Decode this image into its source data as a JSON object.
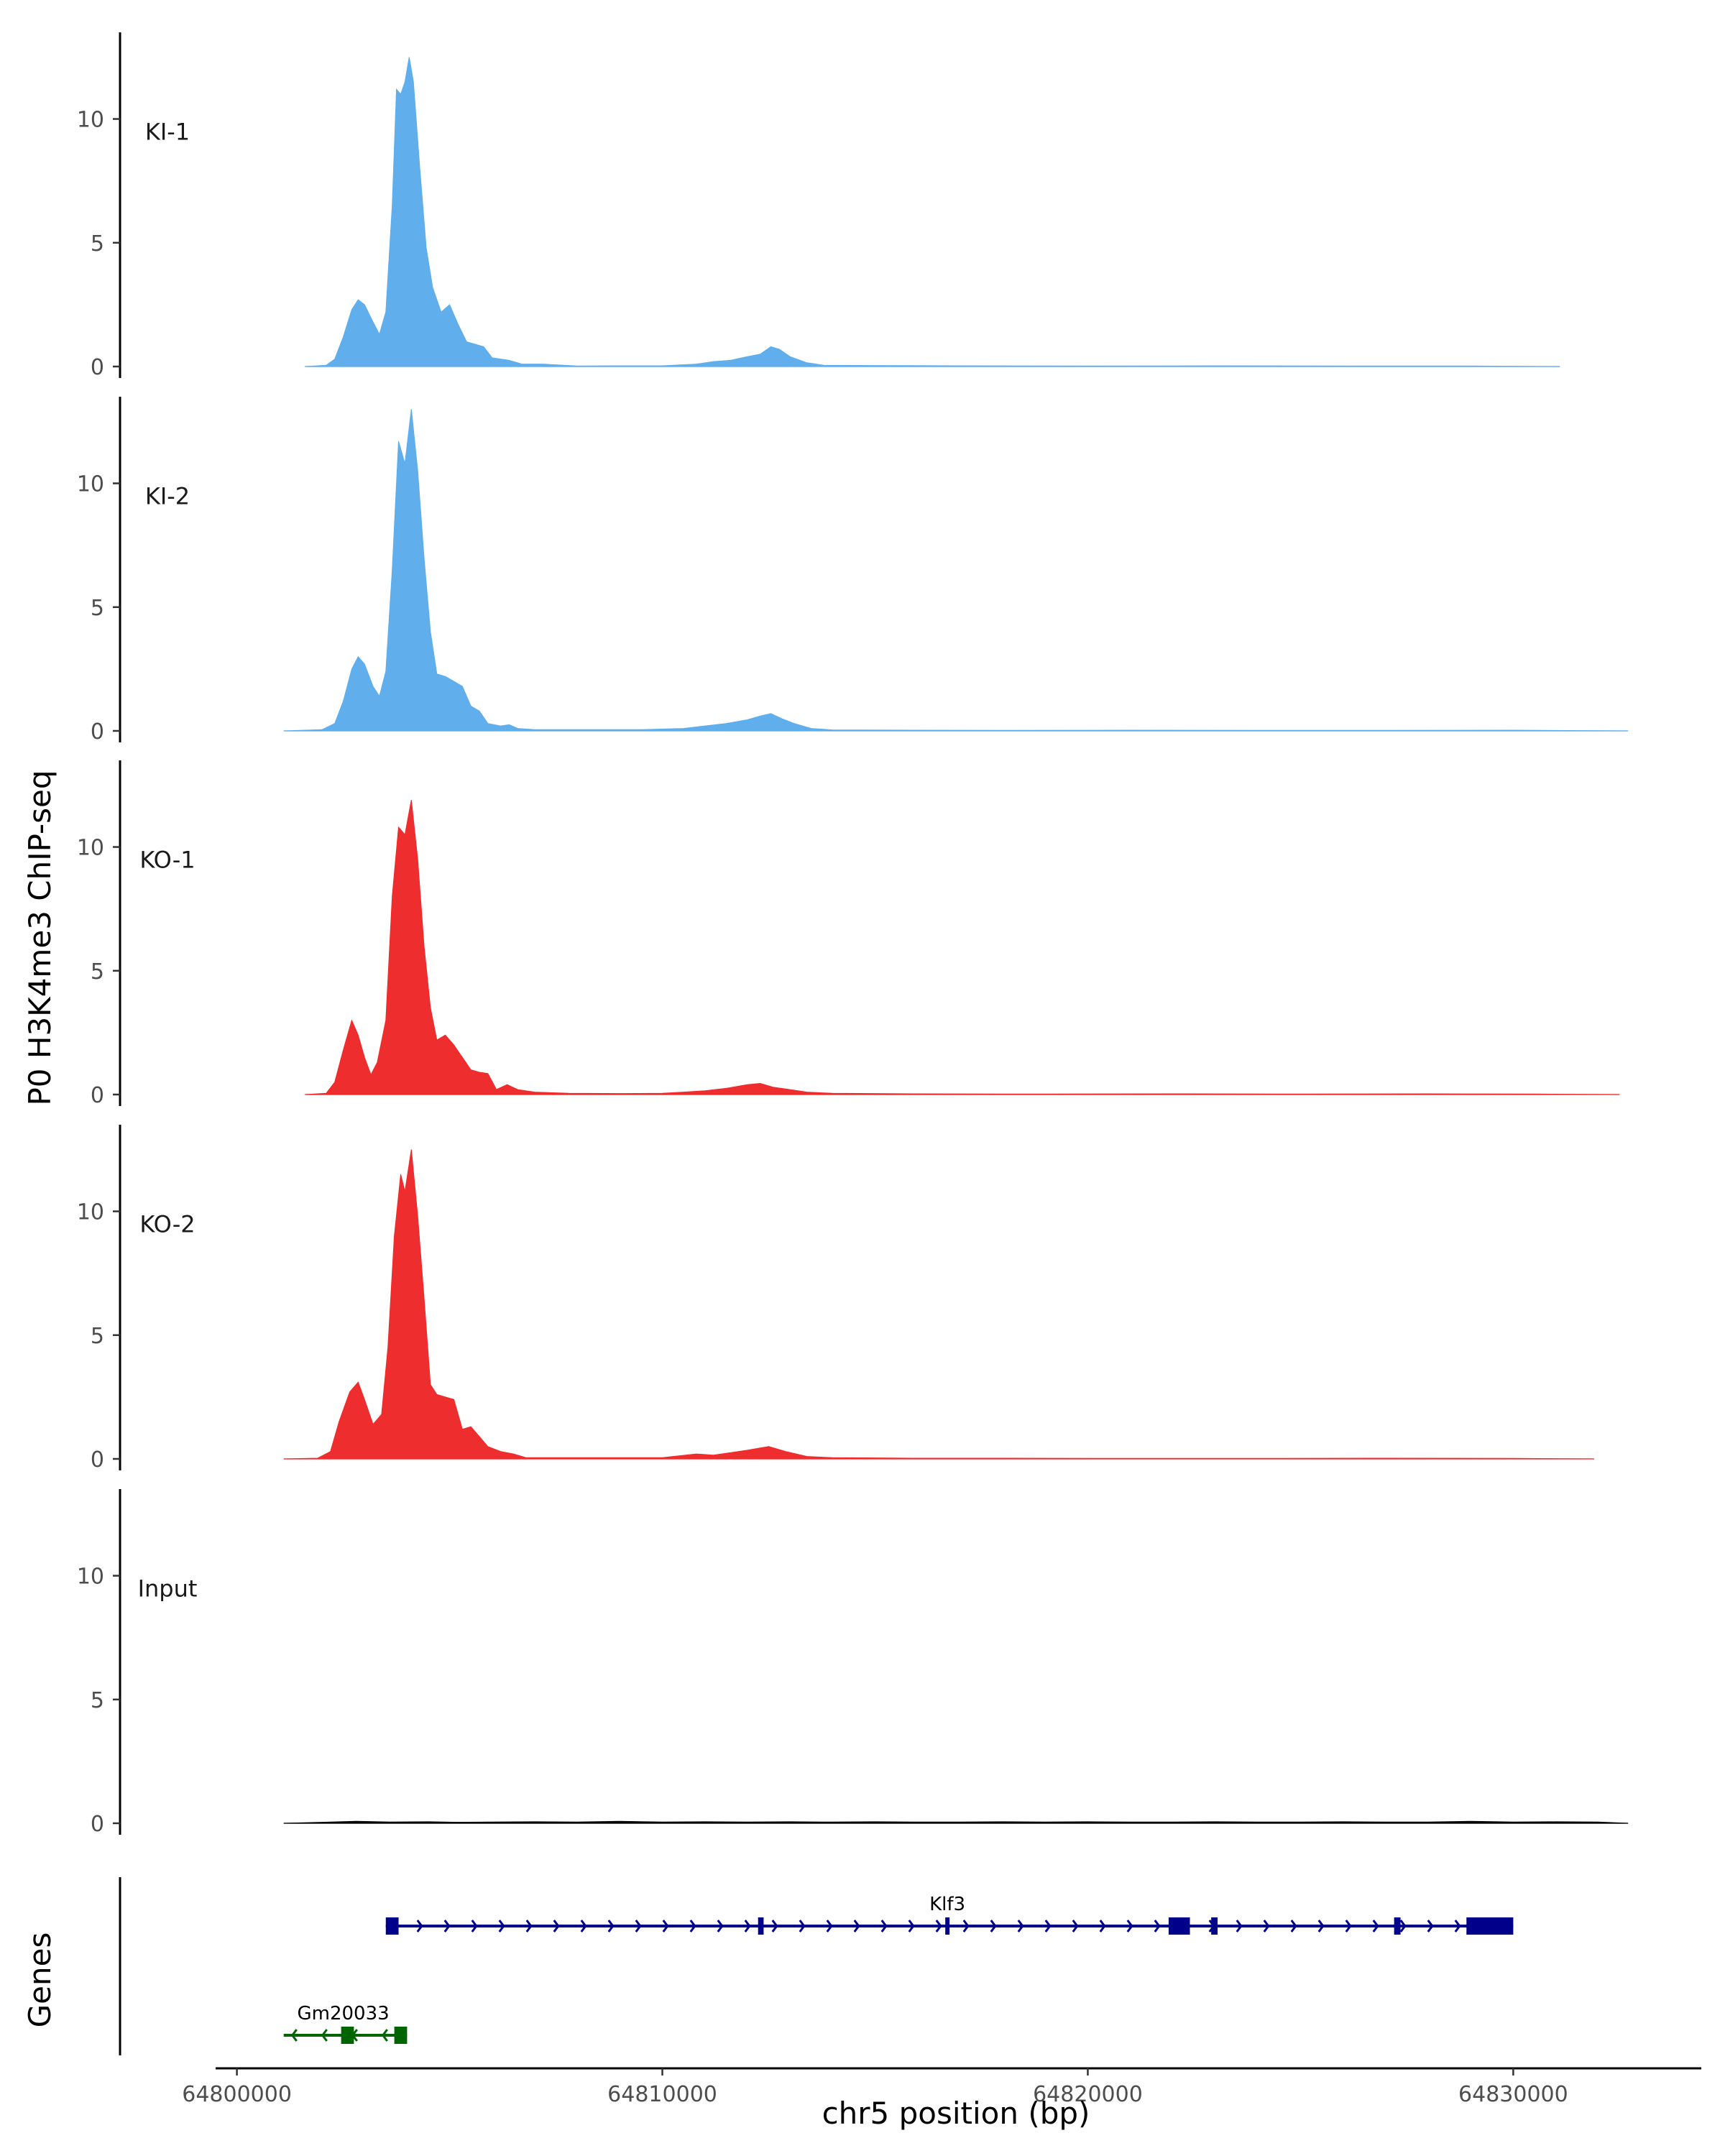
{
  "chart_data": {
    "type": "area",
    "title": "",
    "ylabel": "P0 H3K4me3 ChIP-seq",
    "xlabel": "chr5 position (bp)",
    "genes_label": "Genes",
    "ylim": [
      0,
      13.5
    ],
    "yticks": [
      0,
      5,
      10
    ],
    "xlim": [
      64799500,
      64834200
    ],
    "xticks": [
      64800000,
      64810000,
      64820000,
      64830000
    ],
    "xtick_labels": [
      "64800000",
      "64810000",
      "64820000",
      "64830000"
    ],
    "colors": {
      "KI": "#5DADEC",
      "KO": "#EE2A2A",
      "Input": "#000000",
      "Klf3": "#00008B",
      "Gm20033": "#006400"
    },
    "tracks": [
      {
        "name": "KI-1",
        "color": "#5DADEC",
        "range": [
          64801600,
          64831100
        ],
        "points": [
          [
            64801600,
            0
          ],
          [
            64802100,
            0.05
          ],
          [
            64802300,
            0.3
          ],
          [
            64802500,
            1.2
          ],
          [
            64802700,
            2.3
          ],
          [
            64802850,
            2.7
          ],
          [
            64803000,
            2.5
          ],
          [
            64803200,
            1.8
          ],
          [
            64803350,
            1.3
          ],
          [
            64803500,
            2.2
          ],
          [
            64803650,
            6.5
          ],
          [
            64803750,
            11.2
          ],
          [
            64803850,
            11.0
          ],
          [
            64803950,
            11.5
          ],
          [
            64804050,
            12.5
          ],
          [
            64804150,
            11.5
          ],
          [
            64804300,
            8.0
          ],
          [
            64804450,
            4.8
          ],
          [
            64804600,
            3.2
          ],
          [
            64804800,
            2.2
          ],
          [
            64805000,
            2.5
          ],
          [
            64805200,
            1.7
          ],
          [
            64805400,
            1.0
          ],
          [
            64805600,
            0.9
          ],
          [
            64805800,
            0.8
          ],
          [
            64806000,
            0.35
          ],
          [
            64806400,
            0.25
          ],
          [
            64806700,
            0.1
          ],
          [
            64807200,
            0.1
          ],
          [
            64808000,
            0.02
          ],
          [
            64809000,
            0.03
          ],
          [
            64810000,
            0.03
          ],
          [
            64810800,
            0.1
          ],
          [
            64811200,
            0.2
          ],
          [
            64811600,
            0.25
          ],
          [
            64812000,
            0.4
          ],
          [
            64812300,
            0.5
          ],
          [
            64812550,
            0.8
          ],
          [
            64812750,
            0.7
          ],
          [
            64813000,
            0.4
          ],
          [
            64813400,
            0.15
          ],
          [
            64813800,
            0.05
          ],
          [
            64815000,
            0.04
          ],
          [
            64817000,
            0.03
          ],
          [
            64820000,
            0.02
          ],
          [
            64823000,
            0.03
          ],
          [
            64826000,
            0.02
          ],
          [
            64829000,
            0.02
          ],
          [
            64831100,
            0
          ]
        ]
      },
      {
        "name": "KI-2",
        "color": "#5DADEC",
        "range": [
          64801100,
          64832700
        ],
        "points": [
          [
            64801100,
            0
          ],
          [
            64802000,
            0.05
          ],
          [
            64802300,
            0.3
          ],
          [
            64802500,
            1.2
          ],
          [
            64802700,
            2.5
          ],
          [
            64802850,
            3.0
          ],
          [
            64803000,
            2.7
          ],
          [
            64803200,
            1.8
          ],
          [
            64803350,
            1.4
          ],
          [
            64803500,
            2.4
          ],
          [
            64803650,
            6.5
          ],
          [
            64803800,
            11.7
          ],
          [
            64803950,
            10.8
          ],
          [
            64804100,
            13.0
          ],
          [
            64804250,
            10.5
          ],
          [
            64804400,
            7.0
          ],
          [
            64804550,
            4.0
          ],
          [
            64804700,
            2.3
          ],
          [
            64804900,
            2.2
          ],
          [
            64805100,
            2.0
          ],
          [
            64805300,
            1.8
          ],
          [
            64805500,
            1.0
          ],
          [
            64805700,
            0.8
          ],
          [
            64805900,
            0.3
          ],
          [
            64806200,
            0.2
          ],
          [
            64806400,
            0.25
          ],
          [
            64806600,
            0.1
          ],
          [
            64807000,
            0.05
          ],
          [
            64808500,
            0.05
          ],
          [
            64809500,
            0.05
          ],
          [
            64810500,
            0.1
          ],
          [
            64811000,
            0.2
          ],
          [
            64811500,
            0.3
          ],
          [
            64812000,
            0.45
          ],
          [
            64812300,
            0.6
          ],
          [
            64812550,
            0.7
          ],
          [
            64812800,
            0.5
          ],
          [
            64813100,
            0.3
          ],
          [
            64813500,
            0.1
          ],
          [
            64814000,
            0.04
          ],
          [
            64816000,
            0.03
          ],
          [
            64818000,
            0.02
          ],
          [
            64821000,
            0.03
          ],
          [
            64824000,
            0.02
          ],
          [
            64827000,
            0.02
          ],
          [
            64830000,
            0.03
          ],
          [
            64832700,
            0
          ]
        ]
      },
      {
        "name": "KO-1",
        "color": "#EE2A2A",
        "range": [
          64801600,
          64832500
        ],
        "points": [
          [
            64801600,
            0
          ],
          [
            64802100,
            0.05
          ],
          [
            64802300,
            0.5
          ],
          [
            64802500,
            1.8
          ],
          [
            64802700,
            3.0
          ],
          [
            64802850,
            2.4
          ],
          [
            64803000,
            1.5
          ],
          [
            64803150,
            0.8
          ],
          [
            64803300,
            1.3
          ],
          [
            64803500,
            3.0
          ],
          [
            64803650,
            8.0
          ],
          [
            64803800,
            10.8
          ],
          [
            64803950,
            10.5
          ],
          [
            64804100,
            11.9
          ],
          [
            64804250,
            9.5
          ],
          [
            64804400,
            6.0
          ],
          [
            64804550,
            3.5
          ],
          [
            64804700,
            2.2
          ],
          [
            64804900,
            2.4
          ],
          [
            64805100,
            2.0
          ],
          [
            64805300,
            1.5
          ],
          [
            64805500,
            1.0
          ],
          [
            64805700,
            0.9
          ],
          [
            64805900,
            0.85
          ],
          [
            64806100,
            0.2
          ],
          [
            64806350,
            0.4
          ],
          [
            64806600,
            0.2
          ],
          [
            64807000,
            0.1
          ],
          [
            64807800,
            0.05
          ],
          [
            64809000,
            0.04
          ],
          [
            64810000,
            0.05
          ],
          [
            64810500,
            0.1
          ],
          [
            64811000,
            0.15
          ],
          [
            64811500,
            0.25
          ],
          [
            64812000,
            0.4
          ],
          [
            64812300,
            0.45
          ],
          [
            64812600,
            0.3
          ],
          [
            64813000,
            0.2
          ],
          [
            64813400,
            0.1
          ],
          [
            64814000,
            0.05
          ],
          [
            64816000,
            0.03
          ],
          [
            64819000,
            0.02
          ],
          [
            64822000,
            0.03
          ],
          [
            64825000,
            0.02
          ],
          [
            64828000,
            0.03
          ],
          [
            64830500,
            0.02
          ],
          [
            64832500,
            0
          ]
        ]
      },
      {
        "name": "KO-2",
        "color": "#EE2A2A",
        "range": [
          64801100,
          64831900
        ],
        "points": [
          [
            64801100,
            0
          ],
          [
            64801900,
            0.03
          ],
          [
            64802200,
            0.3
          ],
          [
            64802400,
            1.5
          ],
          [
            64802650,
            2.7
          ],
          [
            64802850,
            3.1
          ],
          [
            64803000,
            2.4
          ],
          [
            64803200,
            1.4
          ],
          [
            64803400,
            1.8
          ],
          [
            64803550,
            4.5
          ],
          [
            64803700,
            9.0
          ],
          [
            64803850,
            11.5
          ],
          [
            64803950,
            10.8
          ],
          [
            64804100,
            12.5
          ],
          [
            64804250,
            9.8
          ],
          [
            64804400,
            6.5
          ],
          [
            64804550,
            3.0
          ],
          [
            64804700,
            2.6
          ],
          [
            64804900,
            2.5
          ],
          [
            64805100,
            2.4
          ],
          [
            64805300,
            1.2
          ],
          [
            64805500,
            1.3
          ],
          [
            64805700,
            0.9
          ],
          [
            64805900,
            0.5
          ],
          [
            64806200,
            0.3
          ],
          [
            64806500,
            0.2
          ],
          [
            64806800,
            0.05
          ],
          [
            64807500,
            0.05
          ],
          [
            64808500,
            0.05
          ],
          [
            64810000,
            0.05
          ],
          [
            64810800,
            0.2
          ],
          [
            64811200,
            0.15
          ],
          [
            64811600,
            0.25
          ],
          [
            64812000,
            0.35
          ],
          [
            64812500,
            0.5
          ],
          [
            64812900,
            0.3
          ],
          [
            64813400,
            0.1
          ],
          [
            64814000,
            0.05
          ],
          [
            64816000,
            0.03
          ],
          [
            64818000,
            0.03
          ],
          [
            64821000,
            0.02
          ],
          [
            64824000,
            0.02
          ],
          [
            64827000,
            0.03
          ],
          [
            64830000,
            0.02
          ],
          [
            64831900,
            0
          ]
        ]
      },
      {
        "name": "Input",
        "color": "#000000",
        "range": [
          64801100,
          64832700
        ],
        "points": [
          [
            64801100,
            0
          ],
          [
            64802000,
            0.04
          ],
          [
            64802800,
            0.08
          ],
          [
            64803600,
            0.05
          ],
          [
            64804500,
            0.06
          ],
          [
            64805200,
            0.04
          ],
          [
            64806000,
            0.05
          ],
          [
            64807000,
            0.06
          ],
          [
            64808000,
            0.05
          ],
          [
            64809000,
            0.08
          ],
          [
            64810000,
            0.05
          ],
          [
            64811000,
            0.06
          ],
          [
            64812000,
            0.05
          ],
          [
            64813000,
            0.06
          ],
          [
            64814000,
            0.05
          ],
          [
            64815000,
            0.06
          ],
          [
            64816000,
            0.05
          ],
          [
            64817000,
            0.05
          ],
          [
            64818000,
            0.06
          ],
          [
            64819000,
            0.05
          ],
          [
            64820000,
            0.06
          ],
          [
            64821000,
            0.05
          ],
          [
            64822000,
            0.05
          ],
          [
            64823000,
            0.06
          ],
          [
            64824000,
            0.05
          ],
          [
            64825000,
            0.05
          ],
          [
            64826000,
            0.06
          ],
          [
            64827000,
            0.05
          ],
          [
            64828000,
            0.05
          ],
          [
            64829000,
            0.08
          ],
          [
            64830000,
            0.05
          ],
          [
            64831000,
            0.06
          ],
          [
            64832000,
            0.05
          ],
          [
            64832700,
            0
          ]
        ]
      }
    ],
    "genes": [
      {
        "name": "Klf3",
        "color": "#00008B",
        "strand": "+",
        "start": 64803500,
        "end": 64830000,
        "exons": [
          [
            64803500,
            64803800
          ],
          [
            64812250,
            64812380
          ],
          [
            64816650,
            64816750
          ],
          [
            64821900,
            64822400
          ],
          [
            64822900,
            64823050
          ],
          [
            64827200,
            64827350
          ],
          [
            64828900,
            64830000
          ]
        ]
      },
      {
        "name": "Gm20033",
        "color": "#006400",
        "strand": "-",
        "start": 64801100,
        "end": 64804000,
        "exons": [
          [
            64802450,
            64802750
          ],
          [
            64803700,
            64804000
          ]
        ]
      }
    ]
  }
}
